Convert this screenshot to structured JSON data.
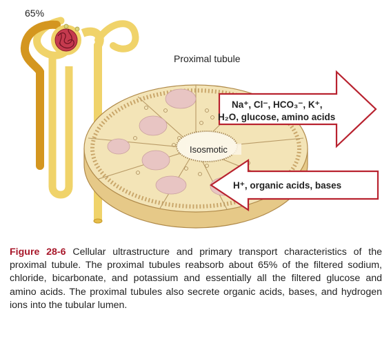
{
  "figure": {
    "percent_label": "65%",
    "tubule_title": "Proximal tubule",
    "reabsorb_line1": "Na⁺, Cl⁻, HCO₃⁻, K⁺,",
    "reabsorb_line2": "H₂O, glucose, amino acids",
    "center_label": "Isosmotic",
    "secrete_label": "H⁺, organic acids, bases",
    "colors": {
      "arrow_outline": "#b8222f",
      "tubule_dark": "#d4961f",
      "tubule_light": "#f0d36a",
      "disc_fill": "#f3e4b7",
      "cell_nucleus": "#e8c5c3",
      "glomerulus": "#b0283c"
    }
  },
  "caption": {
    "figure_number": "Figure 28-6",
    "text": "Cellular ultrastructure and primary transport characteristics of the proximal tubule. The proximal tubules reabsorb about 65% of the filtered sodium, chloride, bicarbonate, and potassium and essentially all the filtered glucose and amino acids. The proximal tubules also secrete organic acids, bases, and hydrogen ions into the tubular lumen."
  }
}
